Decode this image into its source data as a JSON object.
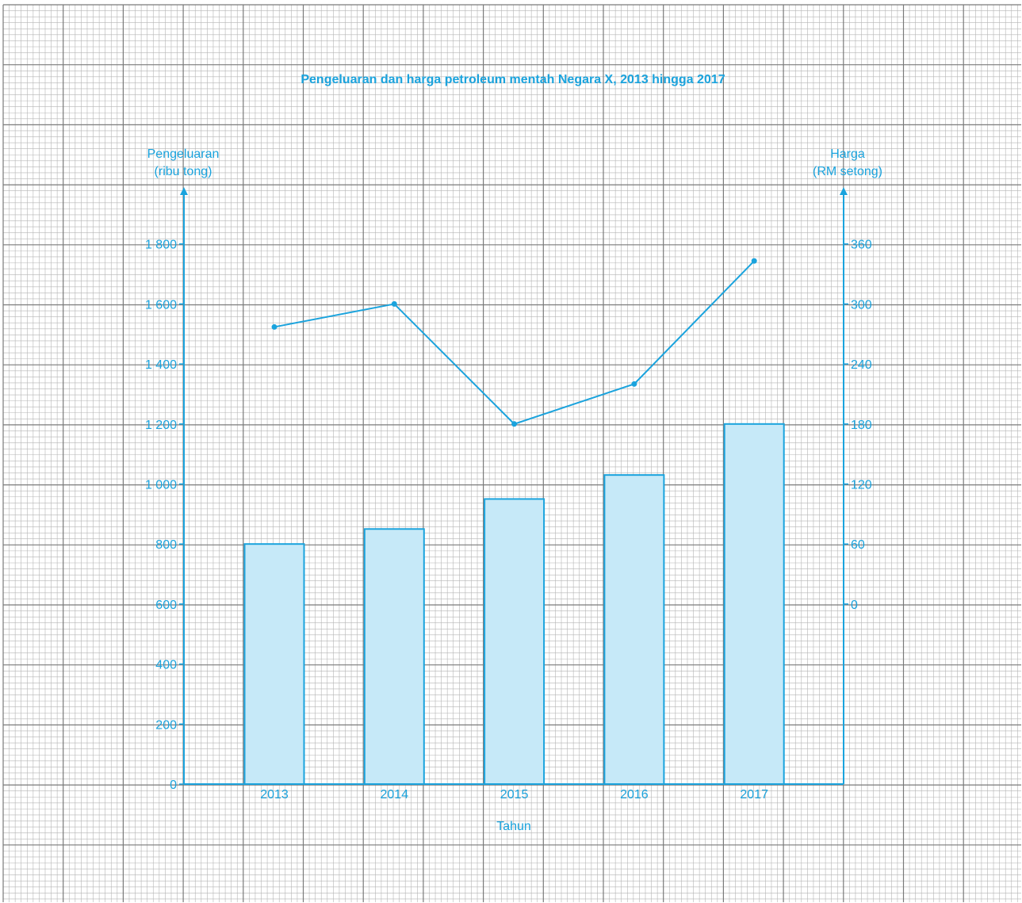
{
  "chart_data": {
    "type": "bar",
    "title": "Pengeluaran dan harga petroleum mentah Negara X, 2013 hingga 2017",
    "xlabel": "Tahun",
    "categories": [
      "2013",
      "2014",
      "2015",
      "2016",
      "2017"
    ],
    "y_left": {
      "label_line1": "Pengeluaran",
      "label_line2": "(ribu tong)",
      "range": [
        0,
        1800
      ],
      "ticks": [
        0,
        200,
        400,
        600,
        800,
        1000,
        1200,
        1400,
        1600,
        1800
      ],
      "tick_labels": [
        "0",
        "200",
        "400",
        "600",
        "800",
        "1 000",
        "1 200",
        "1 400",
        "1 600",
        "1 800"
      ]
    },
    "y_right": {
      "label_line1": "Harga",
      "label_line2": "(RM setong)",
      "range": [
        0,
        360
      ],
      "ticks": [
        0,
        60,
        120,
        180,
        240,
        300,
        360
      ],
      "tick_labels": [
        "0",
        "60",
        "120",
        "180",
        "240",
        "300",
        "360"
      ]
    },
    "series": [
      {
        "type": "bar",
        "axis": "left",
        "values": [
          800,
          850,
          950,
          1030,
          1200
        ]
      },
      {
        "type": "line",
        "axis": "right",
        "values": [
          277,
          300,
          180,
          220,
          343
        ]
      }
    ],
    "grid": true,
    "colors": {
      "accent": "#1aa3dd",
      "bar_fill": "#c6e9f8",
      "grid_minor": "#b5b5b5",
      "grid_major": "#7a7a7a"
    }
  }
}
